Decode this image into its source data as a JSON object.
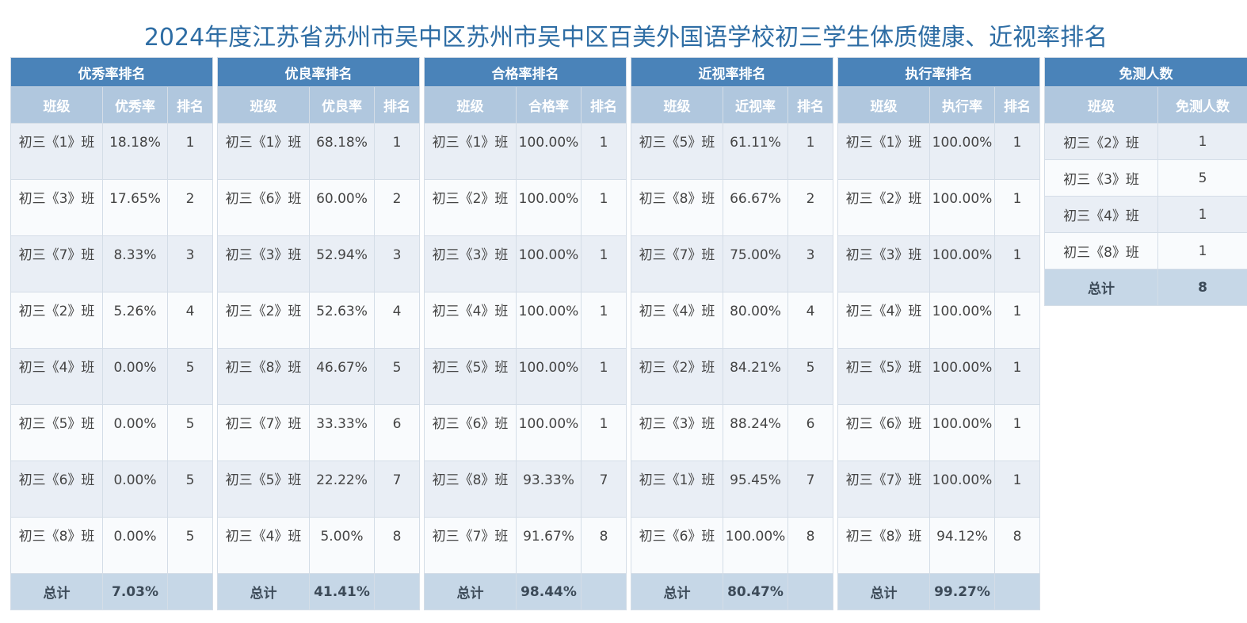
{
  "title": "2024年度江苏省苏州市吴中区苏州市吴中区百美外国语学校初三学生体质健康、近视率排名",
  "panels": [
    {
      "heading": "优秀率排名",
      "cols": [
        "班级",
        "优秀率",
        "排名"
      ],
      "rows": [
        {
          "cls": "初三《1》班",
          "rate": "18.18%",
          "rank": "1"
        },
        {
          "cls": "初三《3》班",
          "rate": "17.65%",
          "rank": "2"
        },
        {
          "cls": "初三《7》班",
          "rate": "8.33%",
          "rank": "3"
        },
        {
          "cls": "初三《2》班",
          "rate": "5.26%",
          "rank": "4"
        },
        {
          "cls": "初三《4》班",
          "rate": "0.00%",
          "rank": "5"
        },
        {
          "cls": "初三《5》班",
          "rate": "0.00%",
          "rank": "5"
        },
        {
          "cls": "初三《6》班",
          "rate": "0.00%",
          "rank": "5"
        },
        {
          "cls": "初三《8》班",
          "rate": "0.00%",
          "rank": "5"
        }
      ],
      "total_label": "总计",
      "total_value": "7.03%"
    },
    {
      "heading": "优良率排名",
      "cols": [
        "班级",
        "优良率",
        "排名"
      ],
      "rows": [
        {
          "cls": "初三《1》班",
          "rate": "68.18%",
          "rank": "1"
        },
        {
          "cls": "初三《6》班",
          "rate": "60.00%",
          "rank": "2"
        },
        {
          "cls": "初三《3》班",
          "rate": "52.94%",
          "rank": "3"
        },
        {
          "cls": "初三《2》班",
          "rate": "52.63%",
          "rank": "4"
        },
        {
          "cls": "初三《8》班",
          "rate": "46.67%",
          "rank": "5"
        },
        {
          "cls": "初三《7》班",
          "rate": "33.33%",
          "rank": "6"
        },
        {
          "cls": "初三《5》班",
          "rate": "22.22%",
          "rank": "7"
        },
        {
          "cls": "初三《4》班",
          "rate": "5.00%",
          "rank": "8"
        }
      ],
      "total_label": "总计",
      "total_value": "41.41%"
    },
    {
      "heading": "合格率排名",
      "cols": [
        "班级",
        "合格率",
        "排名"
      ],
      "rows": [
        {
          "cls": "初三《1》班",
          "rate": "100.00%",
          "rank": "1"
        },
        {
          "cls": "初三《2》班",
          "rate": "100.00%",
          "rank": "1"
        },
        {
          "cls": "初三《3》班",
          "rate": "100.00%",
          "rank": "1"
        },
        {
          "cls": "初三《4》班",
          "rate": "100.00%",
          "rank": "1"
        },
        {
          "cls": "初三《5》班",
          "rate": "100.00%",
          "rank": "1"
        },
        {
          "cls": "初三《6》班",
          "rate": "100.00%",
          "rank": "1"
        },
        {
          "cls": "初三《8》班",
          "rate": "93.33%",
          "rank": "7"
        },
        {
          "cls": "初三《7》班",
          "rate": "91.67%",
          "rank": "8"
        }
      ],
      "total_label": "总计",
      "total_value": "98.44%"
    },
    {
      "heading": "近视率排名",
      "cols": [
        "班级",
        "近视率",
        "排名"
      ],
      "rows": [
        {
          "cls": "初三《5》班",
          "rate": "61.11%",
          "rank": "1"
        },
        {
          "cls": "初三《8》班",
          "rate": "66.67%",
          "rank": "2"
        },
        {
          "cls": "初三《7》班",
          "rate": "75.00%",
          "rank": "3"
        },
        {
          "cls": "初三《4》班",
          "rate": "80.00%",
          "rank": "4"
        },
        {
          "cls": "初三《2》班",
          "rate": "84.21%",
          "rank": "5"
        },
        {
          "cls": "初三《3》班",
          "rate": "88.24%",
          "rank": "6"
        },
        {
          "cls": "初三《1》班",
          "rate": "95.45%",
          "rank": "7"
        },
        {
          "cls": "初三《6》班",
          "rate": "100.00%",
          "rank": "8"
        }
      ],
      "total_label": "总计",
      "total_value": "80.47%"
    },
    {
      "heading": "执行率排名",
      "cols": [
        "班级",
        "执行率",
        "排名"
      ],
      "rows": [
        {
          "cls": "初三《1》班",
          "rate": "100.00%",
          "rank": "1"
        },
        {
          "cls": "初三《2》班",
          "rate": "100.00%",
          "rank": "1"
        },
        {
          "cls": "初三《3》班",
          "rate": "100.00%",
          "rank": "1"
        },
        {
          "cls": "初三《4》班",
          "rate": "100.00%",
          "rank": "1"
        },
        {
          "cls": "初三《5》班",
          "rate": "100.00%",
          "rank": "1"
        },
        {
          "cls": "初三《6》班",
          "rate": "100.00%",
          "rank": "1"
        },
        {
          "cls": "初三《7》班",
          "rate": "100.00%",
          "rank": "1"
        },
        {
          "cls": "初三《8》班",
          "rate": "94.12%",
          "rank": "8"
        }
      ],
      "total_label": "总计",
      "total_value": "99.27%"
    }
  ],
  "exempt": {
    "heading": "免测人数",
    "cols": [
      "班级",
      "免测人数"
    ],
    "rows": [
      {
        "cls": "初三《2》班",
        "count": "1"
      },
      {
        "cls": "初三《3》班",
        "count": "5"
      },
      {
        "cls": "初三《4》班",
        "count": "1"
      },
      {
        "cls": "初三《8》班",
        "count": "1"
      }
    ],
    "total_label": "总计",
    "total_value": "8"
  }
}
